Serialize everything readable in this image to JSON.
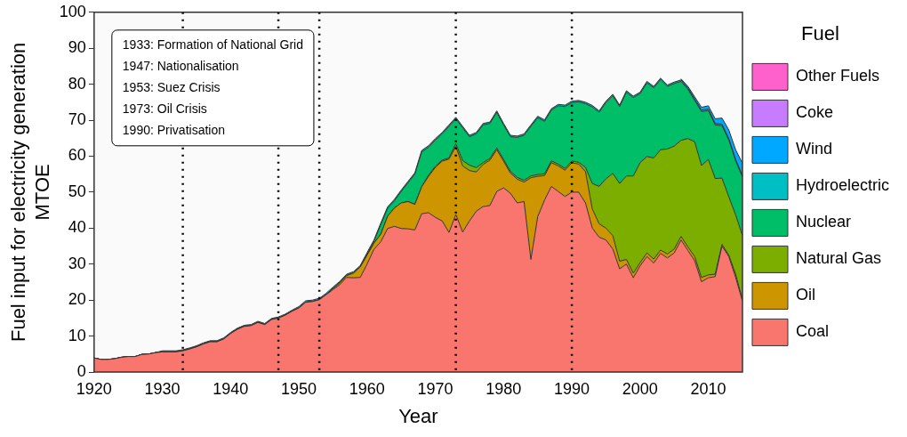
{
  "chart_data": {
    "type": "area",
    "stacked": true,
    "xlabel": "Year",
    "ylabel": "Fuel input for electricity generation\nMTOE",
    "legend_title": "Fuel",
    "legend": "right",
    "grid": false,
    "annotations": [
      "1933: Formation of National Grid",
      "1947: Nationalisation",
      "1953: Suez Crisis",
      "1973: Oil Crisis",
      "1990: Privatisation"
    ],
    "x": [
      1920,
      1921,
      1922,
      1923,
      1924,
      1925,
      1926,
      1927,
      1928,
      1929,
      1930,
      1931,
      1932,
      1933,
      1934,
      1935,
      1936,
      1937,
      1938,
      1939,
      1940,
      1941,
      1942,
      1943,
      1944,
      1945,
      1946,
      1947,
      1948,
      1949,
      1950,
      1951,
      1952,
      1953,
      1954,
      1955,
      1956,
      1957,
      1958,
      1959,
      1960,
      1961,
      1962,
      1963,
      1964,
      1965,
      1966,
      1967,
      1968,
      1969,
      1970,
      1971,
      1972,
      1973,
      1974,
      1975,
      1976,
      1977,
      1978,
      1979,
      1980,
      1981,
      1982,
      1983,
      1984,
      1985,
      1986,
      1987,
      1988,
      1989,
      1990,
      1991,
      1992,
      1993,
      1994,
      1995,
      1996,
      1997,
      1998,
      1999,
      2000,
      2001,
      2002,
      2003,
      2004,
      2005,
      2006,
      2007,
      2008,
      2009,
      2010,
      2011,
      2012,
      2013,
      2014,
      2015
    ],
    "xlim": [
      1920,
      2015
    ],
    "xticks": [
      1920,
      1930,
      1940,
      1950,
      1960,
      1970,
      1980,
      1990,
      2000,
      2010
    ],
    "ylim": [
      0,
      100
    ],
    "yticks": [
      0,
      10,
      20,
      30,
      40,
      50,
      60,
      70,
      80,
      90,
      100
    ],
    "series": [
      {
        "name": "Coal",
        "color": "#f8766d",
        "values": [
          3.9,
          3.5,
          3.5,
          3.7,
          4.1,
          4.3,
          4.3,
          4.9,
          5.0,
          5.4,
          5.6,
          5.6,
          5.6,
          5.9,
          6.4,
          7.0,
          7.8,
          8.4,
          8.4,
          9.2,
          10.7,
          11.9,
          12.7,
          12.9,
          13.8,
          13.2,
          14.6,
          15.0,
          15.8,
          16.9,
          17.8,
          19.4,
          19.6,
          20.1,
          21.5,
          22.9,
          24.3,
          26.3,
          26.2,
          26.3,
          30.0,
          34.1,
          36.2,
          39.9,
          40.5,
          39.9,
          39.8,
          39.5,
          44.0,
          44.3,
          43.0,
          42.0,
          38.8,
          43.8,
          38.9,
          42.0,
          44.7,
          46.0,
          46.3,
          50.2,
          51.2,
          49.7,
          47.0,
          47.4,
          31.3,
          43.2,
          47.8,
          51.6,
          50.2,
          48.8,
          50.0,
          50.0,
          47.0,
          40.0,
          37.5,
          36.7,
          34.2,
          28.7,
          30.0,
          26.2,
          29.5,
          32.1,
          30.3,
          33.0,
          31.7,
          33.1,
          36.7,
          33.8,
          30.9,
          25.1,
          26.2,
          26.5,
          35.0,
          32.1,
          26.3,
          19.7
        ]
      },
      {
        "name": "Oil",
        "color": "#cd9600",
        "values": [
          0,
          0,
          0,
          0,
          0,
          0,
          0,
          0,
          0,
          0,
          0,
          0,
          0,
          0,
          0,
          0,
          0,
          0,
          0,
          0,
          0,
          0,
          0,
          0,
          0,
          0,
          0,
          0,
          0,
          0,
          0,
          0,
          0,
          0,
          0,
          0.3,
          0.5,
          0.5,
          1.3,
          2.9,
          2.5,
          1.7,
          2.1,
          3.4,
          5.1,
          7.1,
          7.6,
          7.1,
          7.5,
          10.1,
          13.9,
          16.6,
          20.4,
          18.9,
          18.4,
          14.0,
          10.9,
          11.7,
          12.6,
          11.6,
          7.4,
          5.6,
          6.6,
          5.4,
          22.7,
          11.2,
          6.8,
          6.6,
          7.1,
          7.3,
          8.2,
          7.8,
          8.7,
          5.3,
          3.7,
          3.3,
          3.7,
          2.1,
          1.3,
          1.3,
          0.9,
          1.0,
          1.1,
          0.9,
          1.1,
          1.1,
          1.0,
          1.0,
          1.2,
          1.2,
          0.8,
          0.7,
          0.5,
          0.4,
          0.9,
          0.4
        ]
      },
      {
        "name": "Natural Gas",
        "color": "#7cae00",
        "values": [
          0,
          0,
          0,
          0,
          0,
          0,
          0,
          0,
          0,
          0,
          0,
          0,
          0,
          0,
          0,
          0,
          0,
          0,
          0,
          0,
          0,
          0,
          0,
          0,
          0,
          0,
          0,
          0,
          0,
          0,
          0,
          0,
          0,
          0,
          0,
          0,
          0,
          0,
          0,
          0,
          0,
          0,
          0,
          0,
          0,
          0,
          0,
          0,
          0,
          0.3,
          0.3,
          0.3,
          0.3,
          0.8,
          1.5,
          1.5,
          1.2,
          0.5,
          0.5,
          0.5,
          0.5,
          0.5,
          0.5,
          0.5,
          0.5,
          0.5,
          0.5,
          0.5,
          0.5,
          0.5,
          0.5,
          0.5,
          1.2,
          7.1,
          10.4,
          13.7,
          17.3,
          21.6,
          23.2,
          27.0,
          27.8,
          26.8,
          28.1,
          27.9,
          29.2,
          28.6,
          26.7,
          30.1,
          31.9,
          31.1,
          32.1,
          26.6,
          18.4,
          16.2,
          16.5,
          17.8
        ]
      },
      {
        "name": "Nuclear",
        "color": "#00be67",
        "values": [
          0,
          0,
          0,
          0,
          0,
          0,
          0,
          0,
          0,
          0,
          0,
          0,
          0,
          0,
          0,
          0,
          0,
          0,
          0,
          0,
          0,
          0,
          0,
          0,
          0,
          0,
          0,
          0,
          0,
          0,
          0,
          0,
          0,
          0,
          0,
          0,
          0,
          0,
          0,
          0,
          0.3,
          0.5,
          2.7,
          2.2,
          2.0,
          3.2,
          5.2,
          8.4,
          9.7,
          7.8,
          7.3,
          7.3,
          8.8,
          6.9,
          9.1,
          7.9,
          9.4,
          10.5,
          9.7,
          9.9,
          9.6,
          9.6,
          11.1,
          12.5,
          13.8,
          15.8,
          14.6,
          14.1,
          16.2,
          17.2,
          16.2,
          16.8,
          17.7,
          21.3,
          20.6,
          21.2,
          21.6,
          21.4,
          23.3,
          21.8,
          19.2,
          20.5,
          19.5,
          19.5,
          17.4,
          17.4,
          16.4,
          13.7,
          11.5,
          15.0,
          13.6,
          14.9,
          14.6,
          15.8,
          15.0,
          16.3
        ]
      },
      {
        "name": "Hydroelectric",
        "color": "#00bfc4",
        "values": [
          0,
          0,
          0,
          0,
          0,
          0,
          0,
          0,
          0,
          0,
          0.3,
          0.3,
          0.3,
          0.3,
          0.3,
          0.3,
          0.3,
          0.3,
          0.3,
          0.3,
          0.3,
          0.3,
          0.3,
          0.3,
          0.3,
          0.3,
          0.3,
          0.3,
          0.3,
          0.3,
          0.4,
          0.4,
          0.4,
          0.4,
          0.4,
          0.4,
          0.4,
          0.4,
          0.4,
          0.4,
          0.4,
          0.4,
          0.4,
          0.4,
          0.4,
          0.4,
          0.4,
          0.4,
          0.4,
          0.4,
          0.4,
          0.4,
          0.4,
          0.4,
          0.4,
          0.4,
          0.4,
          0.4,
          0.4,
          0.4,
          0.4,
          0.4,
          0.4,
          0.4,
          0.4,
          0.4,
          0.4,
          0.4,
          0.4,
          0.4,
          0.4,
          0.4,
          0.4,
          0.4,
          0.4,
          0.4,
          0.4,
          0.4,
          0.4,
          0.4,
          0.4,
          0.4,
          0.4,
          0.4,
          0.4,
          0.4,
          0.4,
          0.4,
          0.4,
          0.4,
          0.4,
          0.4,
          0.4,
          0.4,
          0.4,
          0.4
        ]
      },
      {
        "name": "Wind",
        "color": "#00a9ff",
        "values": [
          null,
          null,
          null,
          null,
          null,
          null,
          null,
          null,
          null,
          null,
          null,
          null,
          null,
          null,
          null,
          null,
          null,
          null,
          null,
          null,
          null,
          null,
          null,
          null,
          null,
          null,
          null,
          null,
          null,
          null,
          null,
          null,
          null,
          null,
          null,
          null,
          null,
          null,
          null,
          null,
          null,
          null,
          null,
          null,
          null,
          null,
          null,
          null,
          null,
          null,
          null,
          null,
          null,
          null,
          null,
          null,
          null,
          null,
          null,
          null,
          null,
          null,
          null,
          null,
          null,
          null,
          null,
          null,
          null,
          null,
          null,
          null,
          null,
          null,
          null,
          null,
          null,
          null,
          null,
          null,
          null,
          null,
          null,
          null,
          null,
          null,
          0.3,
          0.4,
          0.6,
          0.8,
          0.9,
          1.3,
          1.7,
          2.4,
          2.7,
          3.4
        ]
      },
      {
        "name": "Coke",
        "color": "#c77cff",
        "values": [
          null,
          null,
          null,
          null,
          null,
          null,
          null,
          null,
          null,
          null,
          null,
          null,
          null,
          null,
          null,
          null,
          null,
          null,
          null,
          null,
          null,
          null,
          null,
          null,
          null,
          null,
          null,
          null,
          null,
          null,
          null,
          null,
          null,
          null,
          null,
          null,
          null,
          null,
          null,
          null,
          null,
          null,
          null,
          null,
          null,
          null,
          null,
          null,
          null,
          null,
          null,
          null,
          null,
          null,
          null,
          null,
          null,
          null,
          null,
          null,
          null,
          null,
          null,
          null,
          null,
          null,
          null,
          null,
          null,
          null,
          null,
          null,
          null,
          null,
          null,
          null,
          null,
          null,
          null,
          null,
          null,
          null,
          null,
          null,
          null,
          null,
          null,
          null,
          null,
          null,
          null,
          null,
          null,
          null,
          null,
          null
        ]
      },
      {
        "name": "Other Fuels",
        "color": "#ff61cc",
        "values": [
          null,
          null,
          null,
          null,
          null,
          null,
          null,
          null,
          null,
          null,
          null,
          null,
          null,
          null,
          null,
          null,
          null,
          null,
          null,
          null,
          null,
          null,
          null,
          null,
          null,
          null,
          null,
          null,
          null,
          null,
          null,
          null,
          null,
          null,
          null,
          null,
          null,
          null,
          null,
          null,
          null,
          null,
          null,
          null,
          null,
          null,
          null,
          null,
          null,
          null,
          null,
          null,
          null,
          null,
          null,
          null,
          null,
          null,
          null,
          null,
          null,
          null,
          null,
          null,
          null,
          null,
          null,
          null,
          null,
          null,
          null,
          null,
          null,
          null,
          null,
          null,
          null,
          null,
          null,
          null,
          null,
          null,
          null,
          null,
          null,
          null,
          null,
          null,
          null,
          null,
          null,
          null,
          null,
          null,
          null,
          null
        ]
      }
    ],
    "ref_lines": [
      {
        "axis": "x",
        "value": 1933,
        "line_style": "dotted",
        "color": "#000000"
      },
      {
        "axis": "x",
        "value": 1947,
        "line_style": "dotted",
        "color": "#000000"
      },
      {
        "axis": "x",
        "value": 1953,
        "line_style": "dotted",
        "color": "#000000"
      },
      {
        "axis": "x",
        "value": 1973,
        "line_style": "dotted",
        "color": "#000000"
      },
      {
        "axis": "x",
        "value": 1990,
        "line_style": "dotted",
        "color": "#000000"
      }
    ]
  }
}
